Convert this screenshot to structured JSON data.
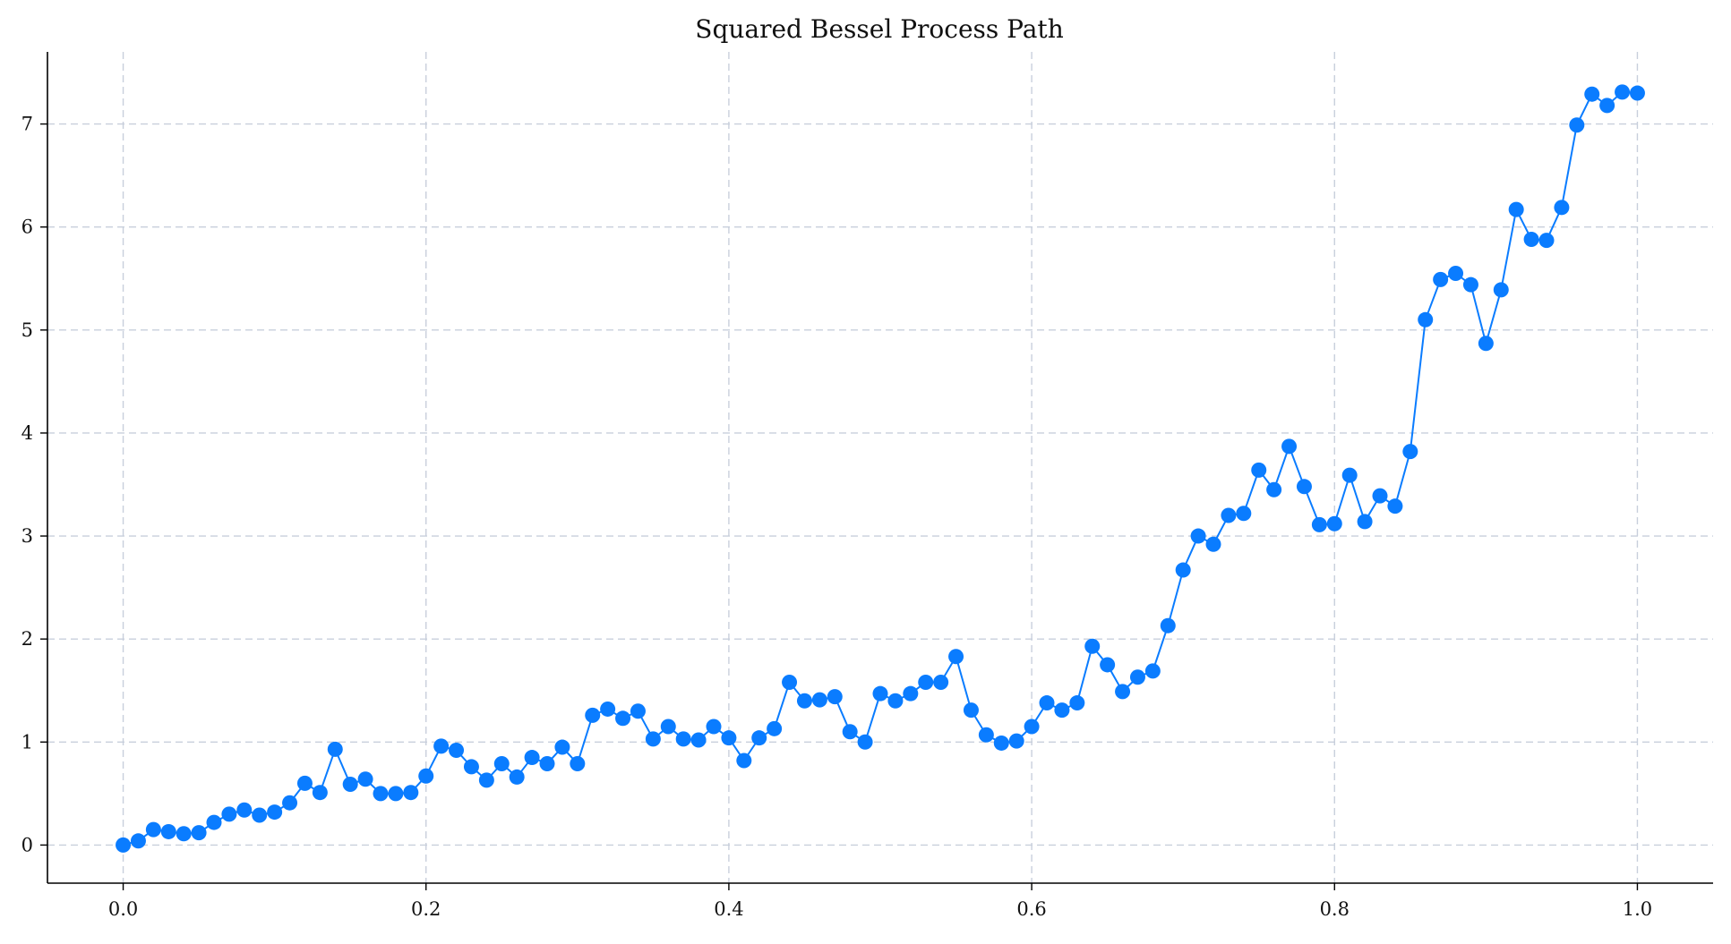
{
  "chart_data": {
    "type": "line",
    "title": "Squared Bessel Process Path",
    "xlabel": "",
    "ylabel": "",
    "xlim": [
      -0.05,
      1.05
    ],
    "ylim": [
      -0.37,
      7.7
    ],
    "xticks": [
      0.0,
      0.2,
      0.4,
      0.6,
      0.8,
      1.0
    ],
    "xtick_labels": [
      "0.0",
      "0.2",
      "0.4",
      "0.6",
      "0.8",
      "1.0"
    ],
    "yticks": [
      0,
      1,
      2,
      3,
      4,
      5,
      6,
      7
    ],
    "ytick_labels": [
      "0",
      "1",
      "2",
      "3",
      "4",
      "5",
      "6",
      "7"
    ],
    "grid": true,
    "colors": {
      "series": "#0a7cff",
      "grid": "#c8cfdc",
      "axis": "#000000"
    },
    "series": [
      {
        "x": [
          0.0,
          0.01,
          0.02,
          0.03,
          0.04,
          0.05,
          0.06,
          0.07,
          0.08,
          0.09,
          0.1,
          0.11,
          0.12,
          0.13,
          0.14,
          0.15,
          0.16,
          0.17,
          0.18,
          0.19,
          0.2,
          0.21,
          0.22,
          0.23,
          0.24,
          0.25,
          0.26,
          0.27,
          0.28,
          0.29,
          0.3,
          0.31,
          0.32,
          0.33,
          0.34,
          0.35,
          0.36,
          0.37,
          0.38,
          0.39,
          0.4,
          0.41,
          0.42,
          0.43,
          0.44,
          0.45,
          0.46,
          0.47,
          0.48,
          0.49,
          0.5,
          0.51,
          0.52,
          0.53,
          0.54,
          0.55,
          0.56,
          0.57,
          0.58,
          0.59,
          0.6,
          0.61,
          0.62,
          0.63,
          0.64,
          0.65,
          0.66,
          0.67,
          0.68,
          0.69,
          0.7,
          0.71,
          0.72,
          0.73,
          0.74,
          0.75,
          0.76,
          0.77,
          0.78,
          0.79,
          0.8,
          0.81,
          0.82,
          0.83,
          0.84,
          0.85,
          0.86,
          0.87,
          0.88,
          0.89,
          0.9,
          0.91,
          0.92,
          0.93,
          0.94,
          0.95,
          0.96,
          0.97,
          0.98,
          0.99,
          1.0
        ],
        "y": [
          0.0,
          0.04,
          0.15,
          0.13,
          0.11,
          0.12,
          0.22,
          0.3,
          0.34,
          0.29,
          0.32,
          0.41,
          0.6,
          0.51,
          0.93,
          0.59,
          0.64,
          0.5,
          0.5,
          0.51,
          0.67,
          0.96,
          0.92,
          0.76,
          0.63,
          0.79,
          0.66,
          0.85,
          0.79,
          0.95,
          0.79,
          1.26,
          1.32,
          1.23,
          1.3,
          1.03,
          1.15,
          1.03,
          1.02,
          1.15,
          1.04,
          0.82,
          1.04,
          1.13,
          1.58,
          1.4,
          1.41,
          1.44,
          1.1,
          1.0,
          1.47,
          1.4,
          1.47,
          1.58,
          1.58,
          1.83,
          1.31,
          1.07,
          0.99,
          1.01,
          1.15,
          1.38,
          1.31,
          1.38,
          1.93,
          1.75,
          1.49,
          1.63,
          1.69,
          2.13,
          2.67,
          3.0,
          2.92,
          3.2,
          3.22,
          3.64,
          3.45,
          3.87,
          3.48,
          3.11,
          3.12,
          3.59,
          3.14,
          3.39,
          3.29,
          3.82,
          5.1,
          5.49,
          5.55,
          5.44,
          4.87,
          5.39,
          6.17,
          5.88,
          5.87,
          6.19,
          6.99,
          7.29,
          7.18,
          7.31,
          7.3
        ]
      }
    ]
  }
}
